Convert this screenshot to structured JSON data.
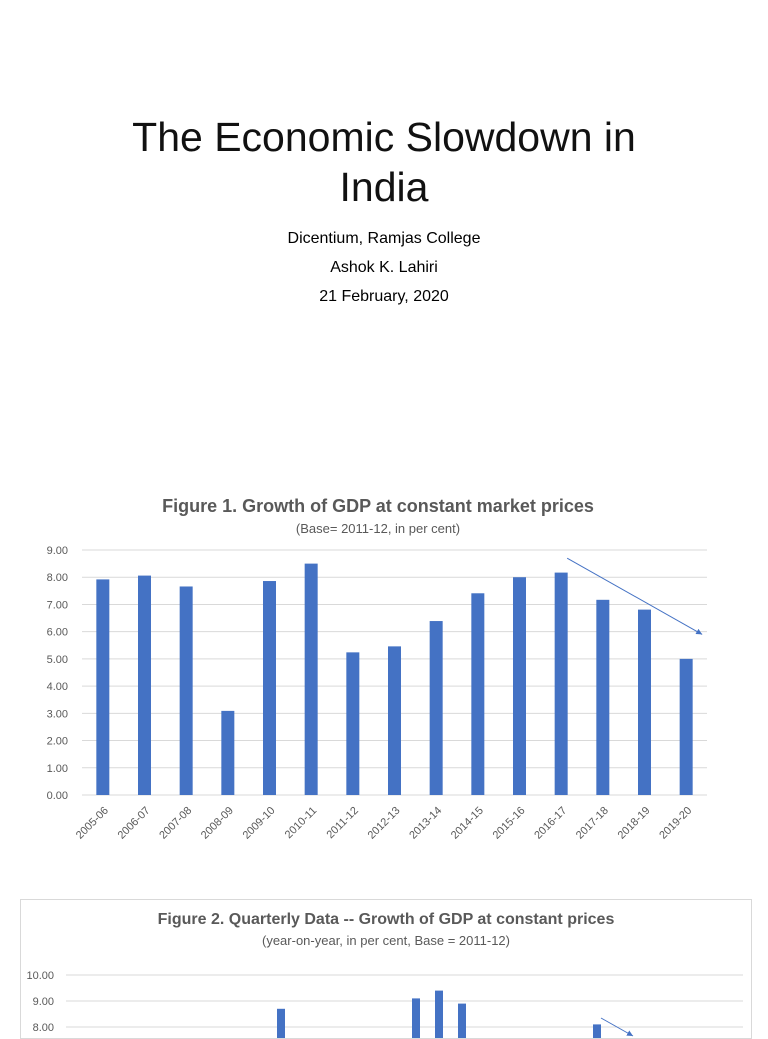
{
  "title": {
    "line1": "The Economic Slowdown in",
    "line2": "India"
  },
  "subtitle": {
    "venue": "Dicentium, Ramjas College",
    "author": "Ashok K. Lahiri",
    "date": "21 February, 2020"
  },
  "colors": {
    "bar": "#4472c4",
    "grid": "#d9d9d9",
    "axis_text": "#595959",
    "arrow": "#4472c4"
  },
  "chart_data": [
    {
      "type": "bar",
      "title": "Figure 1.  Growth of GDP at constant market prices",
      "subtitle": "(Base= 2011-12, in per cent)",
      "categories": [
        "2005-06",
        "2006-07",
        "2007-08",
        "2008-09",
        "2009-10",
        "2010-11",
        "2011-12",
        "2012-13",
        "2013-14",
        "2014-15",
        "2015-16",
        "2016-17",
        "2017-18",
        "2018-19",
        "2019-20"
      ],
      "values": [
        7.92,
        8.06,
        7.66,
        3.09,
        7.86,
        8.5,
        5.24,
        5.46,
        6.39,
        7.41,
        8.0,
        8.17,
        7.17,
        6.81,
        5.0
      ],
      "ylim": [
        0,
        9
      ],
      "yticks": [
        "0.00",
        "1.00",
        "2.00",
        "3.00",
        "4.00",
        "5.00",
        "6.00",
        "7.00",
        "8.00",
        "9.00"
      ],
      "grid": true,
      "annotation": "downward trend arrow from 2016-17 to 2019-20"
    },
    {
      "type": "bar",
      "title": "Figure 2. Quarterly Data -- Growth of GDP at constant prices",
      "subtitle": "(year-on-year, in per cent, Base = 2011-12)",
      "yticks": [
        "10.00",
        "9.00",
        "8.00"
      ],
      "ylim": [
        0,
        10
      ],
      "visible_values": [
        8.7,
        9.1,
        9.4,
        8.9,
        8.1
      ],
      "grid": true,
      "annotation": "downward trend arrow (partially visible)"
    }
  ]
}
